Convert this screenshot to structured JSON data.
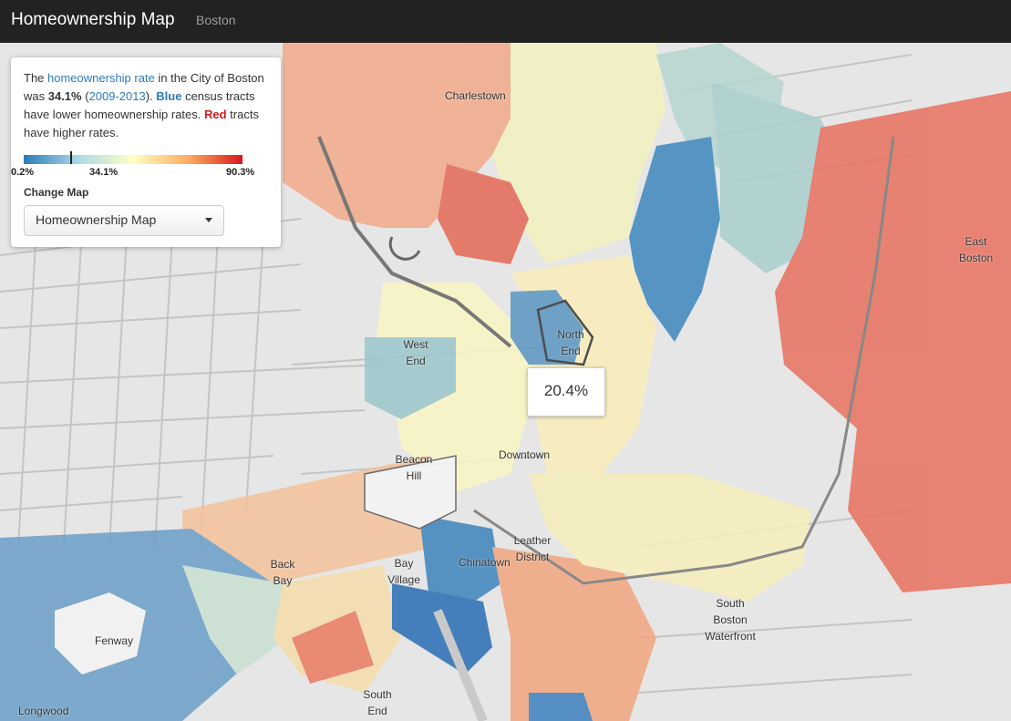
{
  "navbar": {
    "brand": "Homeownership Map",
    "link": "Boston"
  },
  "panel": {
    "intro_pre": "The ",
    "rate_link": "homeownership rate",
    "intro_mid1": " in the City of Boston was ",
    "city_rate": "34.1%",
    "paren_open": " (",
    "years_link": "2009-2013",
    "paren_close": "). ",
    "blue_word": "Blue",
    "intro_mid2": " census tracts have lower homeownership rates. ",
    "red_word": "Red",
    "intro_end": " tracts have higher rates.",
    "legend": {
      "min": "0.2%",
      "mid": "34.1%",
      "max": "90.3%",
      "city_value_pct": 34.1
    },
    "change_map_label": "Change Map",
    "select_value": "Homeownership Map"
  },
  "tooltip": {
    "value": "20.4%"
  },
  "neighborhoods": {
    "charlestown": "Charlestown",
    "east_boston": "East Boston",
    "north_end": "North End",
    "west_end": "West End",
    "beacon_hill": "Beacon Hill",
    "downtown": "Downtown",
    "leather_district": "Leather District",
    "chinatown": "Chinatown",
    "back_bay": "Back Bay",
    "bay_village": "Bay Village",
    "south_boston_waterfront": "South Boston Waterfront",
    "fenway": "Fenway",
    "south_end": "South End",
    "longwood": "Longwood"
  },
  "colors": {
    "low": "#2c7bb6",
    "mid": "#ffffbf",
    "high": "#d7191c",
    "navbar": "#222222",
    "link": "#2b7bb9",
    "water": "#e0e0e0",
    "land": "#f2f2f2"
  }
}
